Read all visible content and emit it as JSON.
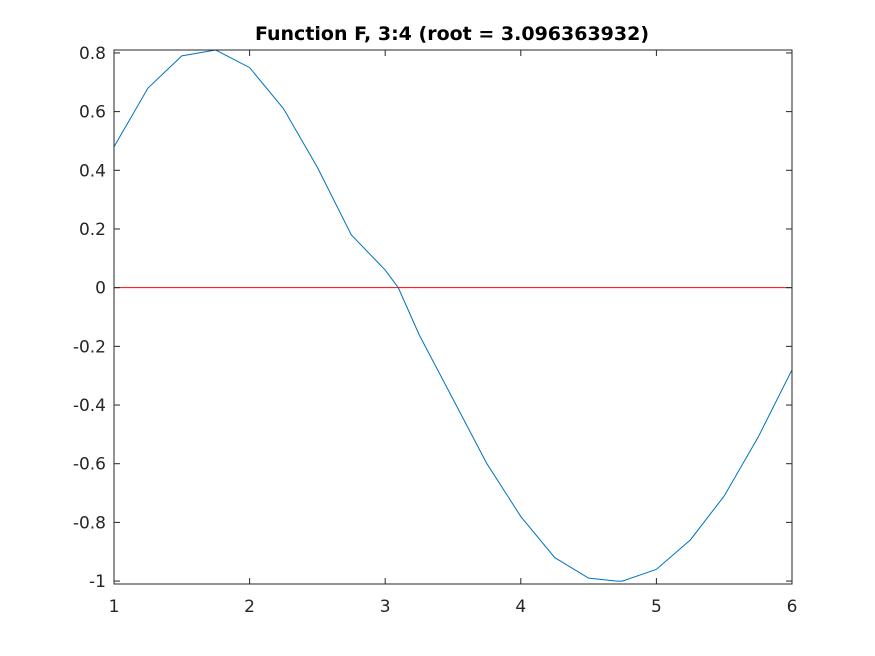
{
  "chart_data": {
    "type": "line",
    "title": "Function F, 3:4 (root = 3.096363932)",
    "xlabel": "",
    "ylabel": "",
    "xlim": [
      1,
      6
    ],
    "ylim": [
      -1.01,
      0.81
    ],
    "x_ticks": [
      1,
      2,
      3,
      4,
      5,
      6
    ],
    "x_tick_labels": [
      "1",
      "2",
      "3",
      "4",
      "5",
      "6"
    ],
    "y_ticks": [
      0.8,
      0.6,
      0.4,
      0.2,
      0,
      -0.2,
      -0.4,
      -0.6,
      -0.8,
      -1
    ],
    "y_tick_labels": [
      "0.8",
      "0.6",
      "0.4",
      "0.2",
      "0",
      "-0.2",
      "-0.4",
      "-0.6",
      "-0.8",
      "-1"
    ],
    "grid": false,
    "series": [
      {
        "color": "#0072bd",
        "x": [
          1.0,
          1.25,
          1.5,
          1.75,
          2.0,
          2.25,
          2.5,
          2.75,
          3.0,
          3.0964,
          3.25,
          3.5,
          3.75,
          4.0,
          4.25,
          4.5,
          4.71,
          4.75,
          5.0,
          5.25,
          5.5,
          5.75,
          6.0
        ],
        "y": [
          0.48,
          0.68,
          0.79,
          0.81,
          0.75,
          0.61,
          0.41,
          0.18,
          0.06,
          0.0,
          -0.16,
          -0.38,
          -0.6,
          -0.78,
          -0.92,
          -0.99,
          -1.0,
          -1.0,
          -0.96,
          -0.86,
          -0.71,
          -0.51,
          -0.28
        ]
      },
      {
        "color": "#ff0000",
        "x": [
          1,
          6
        ],
        "y": [
          0,
          0
        ]
      }
    ]
  }
}
